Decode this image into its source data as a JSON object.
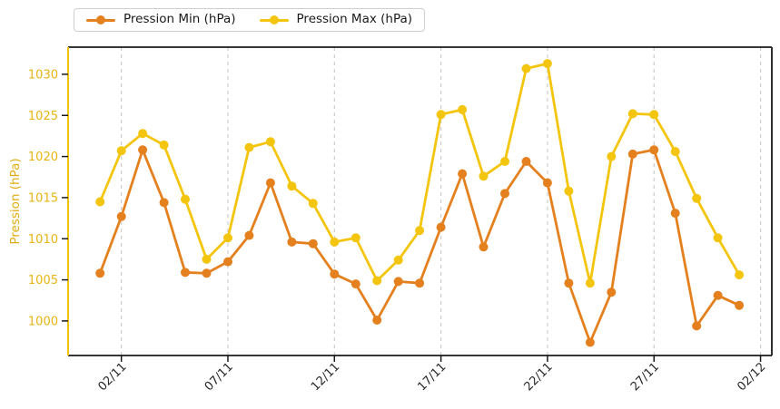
{
  "chart_data": {
    "type": "line",
    "title": "",
    "xlabel": "",
    "ylabel": "Pression (hPa)",
    "x": [
      "01/11",
      "02/11",
      "03/11",
      "04/11",
      "05/11",
      "06/11",
      "07/11",
      "08/11",
      "09/11",
      "10/11",
      "11/11",
      "12/11",
      "13/11",
      "14/11",
      "15/11",
      "16/11",
      "17/11",
      "18/11",
      "19/11",
      "20/11",
      "21/11",
      "22/11",
      "23/11",
      "24/11",
      "25/11",
      "26/11",
      "27/11",
      "28/11",
      "29/11",
      "30/11",
      "01/12"
    ],
    "x_tick_labels": [
      "02/11",
      "07/11",
      "12/11",
      "17/11",
      "22/11",
      "27/11",
      "02/12"
    ],
    "x_tick_indices": [
      1,
      6,
      11,
      16,
      21,
      26,
      31
    ],
    "y_ticks": [
      1000,
      1005,
      1010,
      1015,
      1020,
      1025,
      1030
    ],
    "xlim": [
      -1.5,
      31.53
    ],
    "ylim": [
      995.8,
      1033.3
    ],
    "grid": "vertical-dashed",
    "legend_position": "top-left-outside",
    "series": [
      {
        "name": "Pression Min (hPa)",
        "color": "#e5801f",
        "values": [
          1005.8,
          1012.7,
          1020.8,
          1014.4,
          1005.9,
          1005.8,
          1007.2,
          1010.4,
          1016.8,
          1009.6,
          1009.4,
          1005.7,
          1004.5,
          1000.1,
          1004.8,
          1004.6,
          1011.4,
          1017.9,
          1009.0,
          1015.5,
          1019.4,
          1016.8,
          1004.6,
          997.4,
          1003.5,
          1020.3,
          1020.8,
          1013.1,
          999.4,
          1003.1,
          1001.9
        ]
      },
      {
        "name": "Pression Max (hPa)",
        "color": "#f4c50e",
        "values": [
          1014.5,
          1020.7,
          1022.8,
          1021.4,
          1014.8,
          1007.5,
          1010.1,
          1021.1,
          1021.8,
          1016.4,
          1014.3,
          1009.6,
          1010.1,
          1004.9,
          1007.4,
          1011.0,
          1025.1,
          1025.7,
          1017.6,
          1019.4,
          1030.7,
          1031.3,
          1015.8,
          1004.6,
          1020.0,
          1025.2,
          1025.1,
          1020.6,
          1014.9,
          1010.1,
          1005.6
        ]
      }
    ],
    "colors": {
      "axis_label": "#e2ac10",
      "y_tick_label": "#e7b513",
      "x_tick_label": "#262626",
      "left_spine": "#f2c30d",
      "spine": "#1a1a1a",
      "tick_mark": "#1a1a1a",
      "grid": "#c9c9c9",
      "background": "#ffffff"
    }
  }
}
